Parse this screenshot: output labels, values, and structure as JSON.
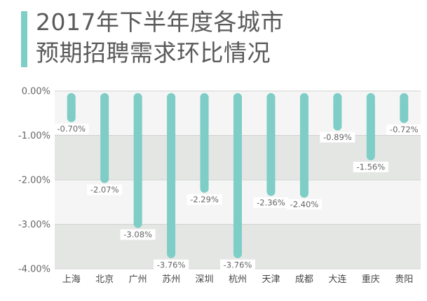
{
  "title": {
    "line1": "2017年下半年度各城市",
    "line2": "预期招聘需求环比情况"
  },
  "colors": {
    "accent": "#7ecdc6",
    "bar": "#7ecdc6",
    "band_light": "#f4f5f4",
    "band_dark": "#e4e6e4",
    "grid": "#cfd2cf"
  },
  "chart_data": {
    "type": "bar",
    "categories": [
      "上海",
      "北京",
      "广州",
      "苏州",
      "深圳",
      "杭州",
      "天津",
      "成都",
      "大连",
      "重庆",
      "贵阳"
    ],
    "values": [
      -0.7,
      -2.07,
      -3.08,
      -3.76,
      -2.29,
      -3.76,
      -2.36,
      -2.4,
      -0.89,
      -1.56,
      -0.72
    ],
    "value_labels": [
      "-0.70%",
      "-2.07%",
      "-3.08%",
      "-3.76%",
      "-2.29%",
      "-3.76%",
      "-2.36%",
      "-2.40%",
      "-0.89%",
      "-1.56%",
      "-0.72%"
    ],
    "y_ticks": [
      0,
      -1,
      -2,
      -3,
      -4
    ],
    "y_tick_labels": [
      "0.00%",
      "-1.00%",
      "-2.00%",
      "-3.00%",
      "-4.00%"
    ],
    "ylim": [
      -4,
      0
    ],
    "grid": true,
    "title": "2017年下半年度各城市预期招聘需求环比情况",
    "xlabel": "",
    "ylabel": ""
  }
}
